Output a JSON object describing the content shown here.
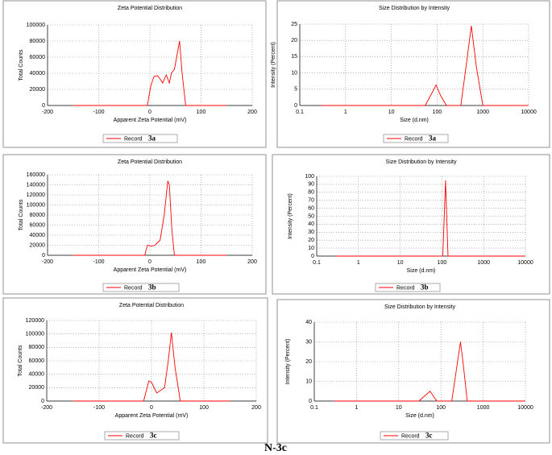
{
  "chart_data": [
    {
      "type": "line",
      "title": "Zeta Potential Distribution",
      "x_label": "Apparent Zeta Potential (mV)",
      "y_label": "Total Counts",
      "annotation": "3a",
      "x": [
        -150,
        -5,
        2,
        8,
        15,
        20,
        25,
        32,
        38,
        42,
        48,
        58,
        63,
        70,
        150
      ],
      "series": [
        {
          "name": "Record",
          "color": "#ff0000",
          "values": [
            0,
            0,
            25000,
            36000,
            37000,
            33000,
            28000,
            38000,
            28000,
            40000,
            45000,
            80000,
            40000,
            0,
            0
          ]
        }
      ],
      "xlim": [
        -200,
        200
      ],
      "xticks": [
        -200,
        -100,
        0,
        100,
        200
      ],
      "ylim": [
        0,
        100000
      ],
      "yticks": [
        0,
        20000,
        40000,
        60000,
        80000,
        100000
      ],
      "grid": true
    },
    {
      "type": "line",
      "title": "Size Distribution by Intensity",
      "x_label": "Size (d.nm)",
      "y_label": "Intensity (Percent)",
      "annotation": "3a",
      "xscale": "log",
      "x": [
        0.3,
        55,
        75,
        95,
        120,
        160,
        330,
        430,
        560,
        720,
        1000,
        10000
      ],
      "series": [
        {
          "name": "Record",
          "color": "#ff0000",
          "values": [
            0,
            0,
            3.5,
            6.3,
            3,
            0,
            0,
            12,
            24.5,
            12,
            0,
            0
          ]
        }
      ],
      "xlim": [
        0.1,
        10000
      ],
      "xticks": [
        0.1,
        1,
        10,
        100,
        1000,
        10000
      ],
      "ylim": [
        0,
        25
      ],
      "yticks": [
        0,
        5,
        10,
        15,
        20,
        25
      ],
      "grid": true
    },
    {
      "type": "line",
      "title": "Zeta Potential Distribution",
      "x_label": "Apparent Zeta Potential (mV)",
      "y_label": "Total Counts",
      "annotation": "3b",
      "x": [
        -150,
        -10,
        -5,
        3,
        10,
        20,
        28,
        35,
        38,
        43,
        48,
        150
      ],
      "series": [
        {
          "name": "Record",
          "color": "#ff0000",
          "values": [
            0,
            0,
            20000,
            18000,
            20000,
            30000,
            80000,
            148000,
            140000,
            50000,
            0,
            0
          ]
        }
      ],
      "xlim": [
        -200,
        200
      ],
      "xticks": [
        -200,
        -100,
        0,
        100,
        200
      ],
      "ylim": [
        0,
        160000
      ],
      "yticks": [
        0,
        20000,
        40000,
        60000,
        80000,
        100000,
        120000,
        140000,
        160000
      ],
      "grid": true
    },
    {
      "type": "line",
      "title": "Size Distribution by Intensity",
      "x_label": "Size (d.nm)",
      "y_label": "Intensity (Percent)",
      "annotation": "3b",
      "xscale": "log",
      "x": [
        0.3,
        105,
        122,
        140,
        10000
      ],
      "series": [
        {
          "name": "Record",
          "color": "#ff0000",
          "values": [
            0,
            0,
            95,
            0,
            0
          ]
        }
      ],
      "xlim": [
        0.1,
        10000
      ],
      "xticks": [
        0.1,
        1,
        10,
        100,
        1000,
        10000
      ],
      "ylim": [
        0,
        100
      ],
      "yticks": [
        0,
        10,
        20,
        30,
        40,
        50,
        60,
        70,
        80,
        90,
        100
      ],
      "grid": true
    },
    {
      "type": "line",
      "title": "Zeta Potential Distribution",
      "x_label": "Apparent Zeta Potential (mV)",
      "y_label": "Total Counts",
      "annotation": "3c",
      "x": [
        -150,
        -15,
        -5,
        0,
        10,
        25,
        32,
        38,
        45,
        55,
        150
      ],
      "series": [
        {
          "name": "Record",
          "color": "#ff0000",
          "values": [
            0,
            0,
            30000,
            28000,
            12000,
            20000,
            60000,
            102000,
            50000,
            0,
            0
          ]
        }
      ],
      "xlim": [
        -200,
        200
      ],
      "xticks": [
        -200,
        -100,
        0,
        100,
        200
      ],
      "ylim": [
        0,
        120000
      ],
      "yticks": [
        0,
        20000,
        40000,
        60000,
        80000,
        100000,
        120000
      ],
      "grid": true
    },
    {
      "type": "line",
      "title": "Size Distribution by Intensity",
      "x_label": "Size (d.nm)",
      "y_label": "Intensity (Percent)",
      "annotation": "3c",
      "xscale": "log",
      "x": [
        0.3,
        30,
        55,
        80,
        180,
        240,
        290,
        340,
        420,
        10000
      ],
      "series": [
        {
          "name": "Record",
          "color": "#ff0000",
          "values": [
            0,
            0,
            5,
            0,
            0,
            18,
            30,
            18,
            0,
            0
          ]
        }
      ],
      "xlim": [
        0.1,
        10000
      ],
      "xticks": [
        0.1,
        1,
        10,
        100,
        1000,
        10000
      ],
      "ylim": [
        0,
        40
      ],
      "yticks": [
        0,
        10,
        20,
        30,
        40
      ],
      "grid": true
    }
  ],
  "caption": "N-3c"
}
